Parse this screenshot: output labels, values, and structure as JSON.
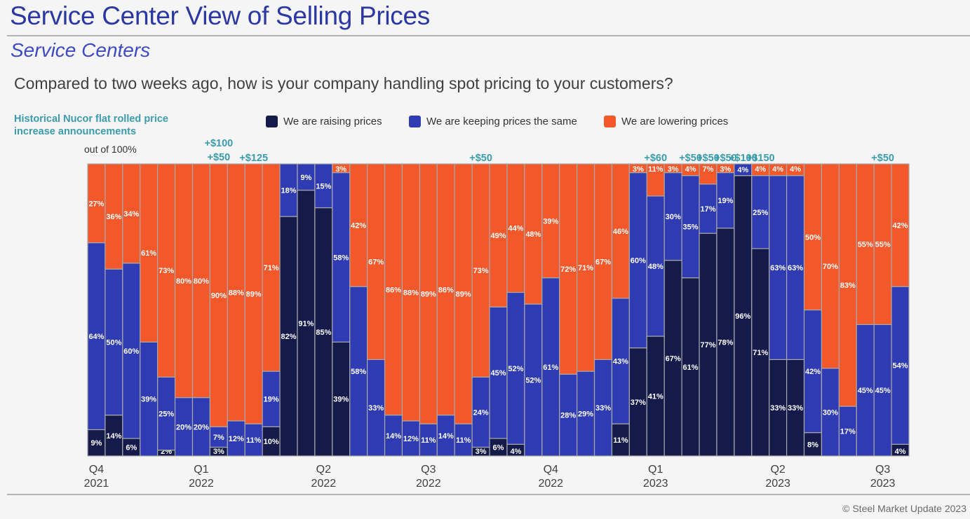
{
  "header": {
    "title": "Service Center View of Selling Prices",
    "subtitle": "Service Centers",
    "question": "Compared to two weeks ago, how is your company handling spot pricing to your customers?",
    "history_label": "Historical Nucor flat rolled price increase announcements",
    "out_of": "out of 100%"
  },
  "legend": {
    "raising": "We are raising prices",
    "keeping": "We are keeping prices the same",
    "lowering": "We are lowering prices"
  },
  "colors": {
    "raising": "#141b4b",
    "keeping": "#2e3bb3",
    "lowering": "#f2582a",
    "announce": "#3b9cab"
  },
  "footer": {
    "copyright": "© Steel Market Update 2023"
  },
  "chart_data": {
    "type": "bar",
    "stacked": true,
    "ylim": [
      0,
      100
    ],
    "series": [
      {
        "name": "We are raising prices",
        "values": [
          9,
          14,
          6,
          0,
          2,
          0,
          0,
          3,
          0,
          0,
          10,
          82,
          91,
          85,
          39,
          0,
          0,
          0,
          0,
          0,
          0,
          0,
          3,
          6,
          4,
          0,
          0,
          0,
          0,
          0,
          11,
          37,
          41,
          67,
          61,
          77,
          78,
          96,
          71,
          33,
          33,
          8,
          0,
          0,
          0,
          0,
          4
        ]
      },
      {
        "name": "We are keeping prices the same",
        "values": [
          64,
          50,
          60,
          39,
          25,
          20,
          20,
          7,
          12,
          11,
          19,
          18,
          9,
          15,
          58,
          58,
          33,
          14,
          12,
          11,
          14,
          11,
          24,
          45,
          52,
          52,
          61,
          28,
          29,
          33,
          43,
          60,
          48,
          30,
          35,
          17,
          19,
          4,
          25,
          63,
          63,
          42,
          30,
          17,
          45,
          45,
          54
        ]
      },
      {
        "name": "We are lowering prices",
        "values": [
          27,
          36,
          34,
          61,
          73,
          80,
          80,
          90,
          88,
          89,
          71,
          0,
          0,
          0,
          3,
          42,
          67,
          86,
          88,
          89,
          86,
          89,
          73,
          49,
          44,
          48,
          39,
          72,
          71,
          67,
          46,
          3,
          11,
          3,
          4,
          7,
          3,
          0,
          4,
          4,
          4,
          50,
          70,
          83,
          55,
          55,
          42
        ]
      }
    ],
    "bar_labels": {
      "raising": [
        "9%",
        "14%",
        "6%",
        "",
        "2%",
        "",
        "",
        "3%",
        "",
        "",
        "10%",
        "82%",
        "91%",
        "85%",
        "39%",
        "",
        "",
        "",
        "",
        "",
        "",
        "",
        "3%",
        "6%",
        "4%",
        "",
        "",
        "",
        "",
        "",
        "11%",
        "37%",
        "41%",
        "67%",
        "61%",
        "77%",
        "78%",
        "96%",
        "71%",
        "33%",
        "33%",
        "8%",
        "",
        "",
        "",
        "",
        "4%"
      ],
      "keeping": [
        "64%",
        "50%",
        "60%",
        "39%",
        "25%",
        "20%",
        "20%",
        "7%",
        "12%",
        "11%",
        "19%",
        "18%",
        "9%",
        "15%",
        "58%",
        "58%",
        "33%",
        "14%",
        "12%",
        "11%",
        "14%",
        "11%",
        "24%",
        "45%",
        "52%",
        "52%",
        "61%",
        "28%",
        "29%",
        "33%",
        "43%",
        "60%",
        "48%",
        "30%",
        "35%",
        "17%",
        "19%",
        "4%",
        "25%",
        "63%",
        "63%",
        "42%",
        "30%",
        "17%",
        "45%",
        "45%",
        "54%"
      ],
      "lowering": [
        "27%",
        "36%",
        "34%",
        "61%",
        "73%",
        "80%",
        "80%",
        "90%",
        "88%",
        "89%",
        "71%",
        "",
        "",
        "",
        "3%",
        "42%",
        "67%",
        "86%",
        "88%",
        "89%",
        "86%",
        "89%",
        "73%",
        "49%",
        "44%",
        "48%",
        "39%",
        "72%",
        "71%",
        "67%",
        "46%",
        "3%",
        "11%",
        "3%",
        "4%",
        "7%",
        "3%",
        "",
        "4%",
        "4%",
        "4%",
        "50%",
        "70%",
        "83%",
        "55%",
        "55%",
        "42%"
      ]
    },
    "announcements": [
      {
        "bar": 7,
        "text": "+$100"
      },
      {
        "bar": 7,
        "text": "+$50"
      },
      {
        "bar": 9,
        "text": "+$125"
      },
      {
        "bar": 22,
        "text": "+$50"
      },
      {
        "bar": 32,
        "text": "+$60"
      },
      {
        "bar": 34,
        "text": "+$50"
      },
      {
        "bar": 35,
        "text": "+$50"
      },
      {
        "bar": 36,
        "text": "+$50"
      },
      {
        "bar": 37,
        "text": "+$100"
      },
      {
        "bar": 38,
        "text": "+$150"
      },
      {
        "bar": 45,
        "text": "+$50"
      }
    ],
    "quarters": [
      {
        "bar": 0,
        "quarter": "Q4",
        "year": "2021"
      },
      {
        "bar": 6,
        "quarter": "Q1",
        "year": "2022"
      },
      {
        "bar": 13,
        "quarter": "Q2",
        "year": "2022"
      },
      {
        "bar": 19,
        "quarter": "Q3",
        "year": "2022"
      },
      {
        "bar": 26,
        "quarter": "Q4",
        "year": "2022"
      },
      {
        "bar": 32,
        "quarter": "Q1",
        "year": "2023"
      },
      {
        "bar": 39,
        "quarter": "Q2",
        "year": "2023"
      },
      {
        "bar": 45,
        "quarter": "Q3",
        "year": "2023"
      }
    ]
  }
}
